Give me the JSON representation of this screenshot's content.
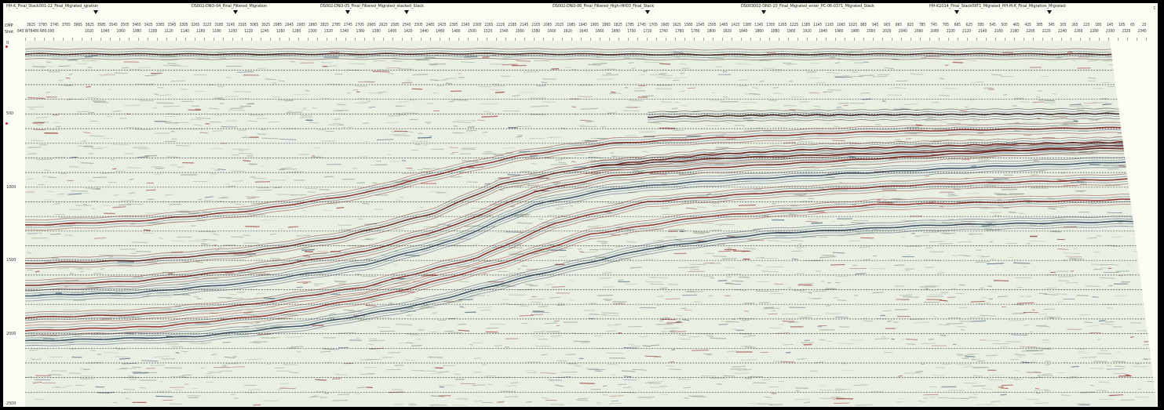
{
  "line_titles": [
    {
      "label": "HH-K_Final_Stack001-12_Final_Migrated_igration"
    },
    {
      "label": "DS002-DNO-04_Final_Filtered_Migration"
    },
    {
      "label": "DS002-DNO-05_Final_Filtered_Migrated_stacked_Stack"
    },
    {
      "label": "DS002-DNO-06_Final_Filtered_High-HH03_Final_Stack"
    },
    {
      "label": "DS003002-DNO-10_Final_Migrated_enter_PC-06-0371_Migrated_Stack"
    },
    {
      "label": "HH-K2014_Final_Stack09T1_Migrated_HH-M-K_Final_Migration_Migrated"
    }
  ],
  "annotation_rows": {
    "cmp_label": "CMP",
    "shot_label": "Shot",
    "shot_prefix": "840 W78480 R80,000",
    "cmp_values": [
      "3825",
      "3785",
      "3745",
      "3705",
      "3665",
      "3625",
      "3585",
      "3545",
      "3505",
      "3465",
      "3425",
      "3385",
      "3345",
      "3305",
      "3265",
      "3225",
      "3185",
      "3145",
      "3105",
      "3065",
      "3025",
      "2985",
      "2945",
      "2905",
      "2865",
      "2825",
      "2785",
      "2745",
      "2705",
      "2665",
      "2625",
      "2585",
      "2545",
      "2505",
      "2465",
      "2425",
      "2385",
      "2345",
      "2305",
      "2265",
      "2225",
      "2185",
      "2145",
      "2105",
      "2065",
      "2025",
      "1985",
      "1945",
      "1905",
      "1865",
      "1825",
      "1785",
      "1745",
      "1705",
      "1665",
      "1625",
      "1585",
      "1545",
      "1505",
      "1465",
      "1425",
      "1385",
      "1345",
      "1305",
      "1265",
      "1225",
      "1185",
      "1145",
      "1105",
      "1065",
      "1025",
      "985",
      "945",
      "905",
      "865",
      "825",
      "785",
      "745",
      "705",
      "665",
      "625",
      "585",
      "545",
      "505",
      "465",
      "425",
      "385",
      "345",
      "305",
      "265",
      "225",
      "185",
      "145",
      "105",
      "65",
      "25"
    ],
    "shot_values": [
      "1020",
      "1040",
      "1060",
      "1080",
      "1100",
      "1120",
      "1140",
      "1160",
      "1180",
      "1200",
      "1220",
      "1240",
      "1260",
      "1280",
      "1300",
      "1320",
      "1340",
      "1360",
      "1380",
      "1400",
      "1420",
      "1440",
      "1460",
      "1480",
      "1500",
      "1520",
      "1540",
      "1560",
      "1580",
      "1600",
      "1620",
      "1640",
      "1660",
      "1680",
      "1700",
      "1720",
      "1740",
      "1760",
      "1780",
      "1800",
      "1820",
      "1840",
      "1860",
      "1880",
      "1900",
      "1920",
      "1940",
      "1960",
      "1980",
      "2000",
      "2020",
      "2040",
      "2060",
      "2080",
      "2100",
      "2120",
      "2140",
      "2160",
      "2180",
      "2200",
      "2220",
      "2240",
      "2260",
      "2280",
      "2300",
      "2320",
      "2340"
    ]
  },
  "time_axis": {
    "labels": [
      "0",
      "500",
      "1000",
      "1500",
      "2000",
      "2500"
    ],
    "max": 2500
  },
  "panel": {
    "background": "#e9efe3",
    "peak_color": "#8c1a1a",
    "trough_color": "#2e4a66",
    "noise_color": "#7c8a74",
    "dashed_line_color": "#2a2a2a"
  },
  "horizons": [
    {
      "color": "#6d1414",
      "points": [
        [
          0,
          1670
        ],
        [
          0.1,
          1640
        ],
        [
          0.2,
          1560
        ],
        [
          0.3,
          1440
        ],
        [
          0.38,
          1260
        ],
        [
          0.45,
          1030
        ],
        [
          0.52,
          920
        ],
        [
          0.6,
          870
        ],
        [
          0.72,
          820
        ],
        [
          0.85,
          760
        ],
        [
          1,
          700
        ]
      ]
    },
    {
      "color": "#243c5a",
      "points": [
        [
          0,
          1740
        ],
        [
          0.1,
          1720
        ],
        [
          0.2,
          1650
        ],
        [
          0.3,
          1530
        ],
        [
          0.38,
          1360
        ],
        [
          0.45,
          1120
        ],
        [
          0.52,
          1010
        ],
        [
          0.6,
          960
        ],
        [
          0.72,
          910
        ],
        [
          0.85,
          860
        ],
        [
          1,
          820
        ]
      ]
    },
    {
      "color": "#7a1a1a",
      "points": [
        [
          0,
          1890
        ],
        [
          0.1,
          1870
        ],
        [
          0.2,
          1800
        ],
        [
          0.3,
          1680
        ],
        [
          0.4,
          1480
        ],
        [
          0.47,
          1240
        ],
        [
          0.55,
          1100
        ],
        [
          0.65,
          1040
        ],
        [
          0.8,
          980
        ],
        [
          1,
          940
        ]
      ]
    },
    {
      "color": "#8a1e1e",
      "points": [
        [
          0,
          1980
        ],
        [
          0.12,
          1950
        ],
        [
          0.22,
          1870
        ],
        [
          0.32,
          1730
        ],
        [
          0.42,
          1520
        ],
        [
          0.5,
          1320
        ],
        [
          0.6,
          1200
        ],
        [
          0.75,
          1120
        ],
        [
          1,
          1080
        ]
      ]
    },
    {
      "color": "#1f3552",
      "points": [
        [
          0,
          2050
        ],
        [
          0.15,
          2020
        ],
        [
          0.25,
          1940
        ],
        [
          0.35,
          1800
        ],
        [
          0.45,
          1600
        ],
        [
          0.55,
          1420
        ],
        [
          0.65,
          1320
        ],
        [
          0.8,
          1260
        ],
        [
          1,
          1230
        ]
      ]
    },
    {
      "color": "#7d1818",
      "points": [
        [
          0,
          1260
        ],
        [
          0.1,
          1230
        ],
        [
          0.2,
          1160
        ],
        [
          0.3,
          1040
        ],
        [
          0.37,
          900
        ],
        [
          0.44,
          780
        ],
        [
          0.52,
          700
        ],
        [
          0.62,
          660
        ],
        [
          0.75,
          620
        ],
        [
          0.9,
          600
        ],
        [
          1,
          590
        ]
      ]
    },
    {
      "color": "#5a1515",
      "points": [
        [
          0,
          1520
        ],
        [
          0.1,
          1500
        ],
        [
          0.2,
          1440
        ],
        [
          0.28,
          1340
        ],
        [
          0.36,
          1180
        ],
        [
          0.42,
          980
        ],
        [
          0.5,
          860
        ],
        [
          0.62,
          800
        ],
        [
          0.8,
          760
        ],
        [
          1,
          730
        ]
      ]
    },
    {
      "color": "#2a1010",
      "points": [
        [
          0.55,
          520
        ],
        [
          0.65,
          510
        ],
        [
          0.78,
          505
        ],
        [
          0.9,
          500
        ],
        [
          1,
          495
        ]
      ]
    },
    {
      "color": "#5c1212",
      "points": [
        [
          0.5,
          860
        ],
        [
          0.6,
          780
        ],
        [
          0.7,
          740
        ],
        [
          0.8,
          720
        ],
        [
          0.9,
          700
        ],
        [
          1,
          690
        ]
      ]
    },
    {
      "color": "#3a0f0f",
      "points": [
        [
          0,
          90
        ],
        [
          0.2,
          92
        ],
        [
          0.4,
          88
        ],
        [
          0.6,
          95
        ],
        [
          0.8,
          90
        ],
        [
          1,
          92
        ]
      ]
    }
  ],
  "status": {
    "corner_text": "C"
  }
}
